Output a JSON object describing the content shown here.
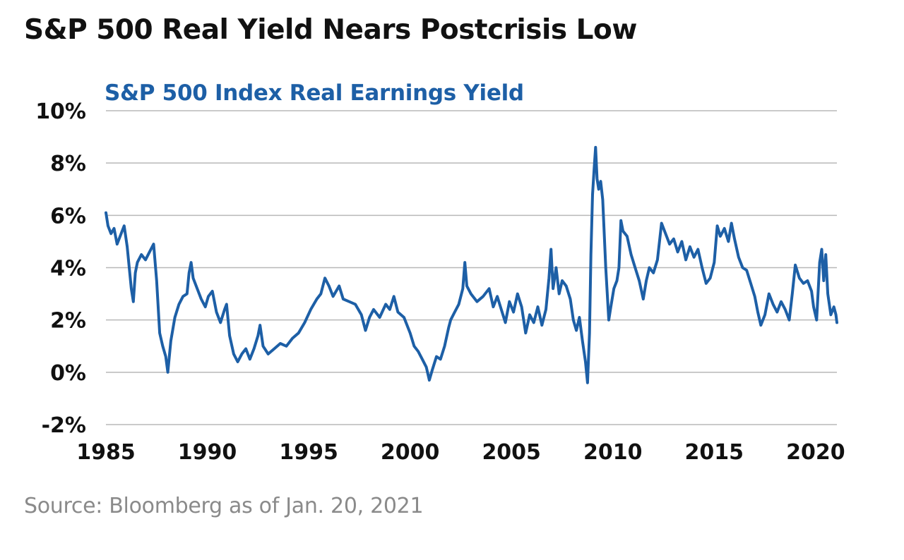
{
  "header": {
    "title": "S&P 500 Real Yield Nears Postcrisis Low"
  },
  "footer": {
    "source": "Source: Bloomberg as of Jan. 20, 2021"
  },
  "colors": {
    "series": "#1d5fa6",
    "grid": "#b8b8b8",
    "text": "#111111",
    "source_text": "#8a8a8a"
  },
  "chart_data": {
    "type": "line",
    "title": "S&P 500 Index Real Earnings Yield",
    "xlabel": "",
    "ylabel": "",
    "xlim": [
      1985,
      2021.05
    ],
    "ylim": [
      -2,
      10
    ],
    "x_ticks": [
      {
        "value": 1985,
        "label": "1985"
      },
      {
        "value": 1990,
        "label": "1990"
      },
      {
        "value": 1995,
        "label": "1995"
      },
      {
        "value": 2000,
        "label": "2000"
      },
      {
        "value": 2005,
        "label": "2005"
      },
      {
        "value": 2010,
        "label": "2010"
      },
      {
        "value": 2015,
        "label": "2015"
      },
      {
        "value": 2020,
        "label": "2020"
      }
    ],
    "y_ticks": [
      {
        "value": 10,
        "label": "10%"
      },
      {
        "value": 8,
        "label": "8%"
      },
      {
        "value": 6,
        "label": "6%"
      },
      {
        "value": 4,
        "label": "4%"
      },
      {
        "value": 2,
        "label": "2%"
      },
      {
        "value": 0,
        "label": "0%"
      },
      {
        "value": -2,
        "label": "-2%"
      }
    ],
    "grid": true,
    "legend": "none",
    "series": [
      {
        "values": [
          [
            1985.0,
            6.1
          ],
          [
            1985.1,
            5.6
          ],
          [
            1985.25,
            5.3
          ],
          [
            1985.4,
            5.5
          ],
          [
            1985.55,
            4.9
          ],
          [
            1985.75,
            5.3
          ],
          [
            1985.9,
            5.6
          ],
          [
            1986.05,
            4.8
          ],
          [
            1986.15,
            4.0
          ],
          [
            1986.25,
            3.2
          ],
          [
            1986.35,
            2.7
          ],
          [
            1986.45,
            3.8
          ],
          [
            1986.55,
            4.2
          ],
          [
            1986.75,
            4.5
          ],
          [
            1986.95,
            4.3
          ],
          [
            1987.15,
            4.6
          ],
          [
            1987.35,
            4.9
          ],
          [
            1987.5,
            3.5
          ],
          [
            1987.65,
            1.5
          ],
          [
            1987.8,
            1.0
          ],
          [
            1987.95,
            0.6
          ],
          [
            1988.05,
            0.0
          ],
          [
            1988.2,
            1.2
          ],
          [
            1988.4,
            2.1
          ],
          [
            1988.6,
            2.6
          ],
          [
            1988.8,
            2.9
          ],
          [
            1989.0,
            3.0
          ],
          [
            1989.1,
            3.8
          ],
          [
            1989.2,
            4.2
          ],
          [
            1989.3,
            3.6
          ],
          [
            1989.5,
            3.2
          ],
          [
            1989.7,
            2.8
          ],
          [
            1989.9,
            2.5
          ],
          [
            1990.05,
            2.9
          ],
          [
            1990.25,
            3.1
          ],
          [
            1990.45,
            2.3
          ],
          [
            1990.65,
            1.9
          ],
          [
            1990.85,
            2.4
          ],
          [
            1990.95,
            2.6
          ],
          [
            1991.1,
            1.4
          ],
          [
            1991.3,
            0.7
          ],
          [
            1991.5,
            0.4
          ],
          [
            1991.7,
            0.7
          ],
          [
            1991.9,
            0.9
          ],
          [
            1992.1,
            0.5
          ],
          [
            1992.3,
            0.9
          ],
          [
            1992.5,
            1.4
          ],
          [
            1992.6,
            1.8
          ],
          [
            1992.75,
            1.0
          ],
          [
            1993.0,
            0.7
          ],
          [
            1993.3,
            0.9
          ],
          [
            1993.6,
            1.1
          ],
          [
            1993.9,
            1.0
          ],
          [
            1994.2,
            1.3
          ],
          [
            1994.5,
            1.5
          ],
          [
            1994.8,
            1.9
          ],
          [
            1995.1,
            2.4
          ],
          [
            1995.4,
            2.8
          ],
          [
            1995.6,
            3.0
          ],
          [
            1995.8,
            3.6
          ],
          [
            1996.0,
            3.3
          ],
          [
            1996.2,
            2.9
          ],
          [
            1996.5,
            3.3
          ],
          [
            1996.7,
            2.8
          ],
          [
            1997.0,
            2.7
          ],
          [
            1997.3,
            2.6
          ],
          [
            1997.6,
            2.2
          ],
          [
            1997.8,
            1.6
          ],
          [
            1998.0,
            2.1
          ],
          [
            1998.2,
            2.4
          ],
          [
            1998.5,
            2.1
          ],
          [
            1998.8,
            2.6
          ],
          [
            1999.0,
            2.4
          ],
          [
            1999.2,
            2.9
          ],
          [
            1999.4,
            2.3
          ],
          [
            1999.7,
            2.1
          ],
          [
            2000.0,
            1.5
          ],
          [
            2000.2,
            1.0
          ],
          [
            2000.4,
            0.8
          ],
          [
            2000.6,
            0.5
          ],
          [
            2000.8,
            0.2
          ],
          [
            2000.95,
            -0.3
          ],
          [
            2001.1,
            0.1
          ],
          [
            2001.3,
            0.6
          ],
          [
            2001.5,
            0.5
          ],
          [
            2001.7,
            1.0
          ],
          [
            2001.9,
            1.7
          ],
          [
            2002.0,
            2.0
          ],
          [
            2002.2,
            2.3
          ],
          [
            2002.4,
            2.6
          ],
          [
            2002.6,
            3.2
          ],
          [
            2002.7,
            4.2
          ],
          [
            2002.8,
            3.3
          ],
          [
            2003.0,
            3.0
          ],
          [
            2003.3,
            2.7
          ],
          [
            2003.6,
            2.9
          ],
          [
            2003.9,
            3.2
          ],
          [
            2004.1,
            2.5
          ],
          [
            2004.3,
            2.9
          ],
          [
            2004.5,
            2.4
          ],
          [
            2004.7,
            1.9
          ],
          [
            2004.9,
            2.7
          ],
          [
            2005.1,
            2.3
          ],
          [
            2005.3,
            3.0
          ],
          [
            2005.5,
            2.5
          ],
          [
            2005.7,
            1.5
          ],
          [
            2005.9,
            2.2
          ],
          [
            2006.1,
            1.9
          ],
          [
            2006.3,
            2.5
          ],
          [
            2006.5,
            1.8
          ],
          [
            2006.7,
            2.4
          ],
          [
            2006.85,
            3.6
          ],
          [
            2006.95,
            4.7
          ],
          [
            2007.05,
            3.2
          ],
          [
            2007.2,
            4.0
          ],
          [
            2007.35,
            3.0
          ],
          [
            2007.5,
            3.5
          ],
          [
            2007.7,
            3.3
          ],
          [
            2007.9,
            2.8
          ],
          [
            2008.05,
            2.0
          ],
          [
            2008.2,
            1.6
          ],
          [
            2008.35,
            2.1
          ],
          [
            2008.5,
            1.2
          ],
          [
            2008.65,
            0.4
          ],
          [
            2008.75,
            -0.4
          ],
          [
            2008.85,
            1.5
          ],
          [
            2008.92,
            4.5
          ],
          [
            2009.0,
            6.8
          ],
          [
            2009.08,
            7.8
          ],
          [
            2009.15,
            8.6
          ],
          [
            2009.22,
            7.4
          ],
          [
            2009.3,
            7.0
          ],
          [
            2009.4,
            7.3
          ],
          [
            2009.5,
            6.6
          ],
          [
            2009.65,
            4.0
          ],
          [
            2009.8,
            2.0
          ],
          [
            2009.9,
            2.5
          ],
          [
            2010.05,
            3.2
          ],
          [
            2010.2,
            3.5
          ],
          [
            2010.3,
            4.0
          ],
          [
            2010.4,
            5.8
          ],
          [
            2010.5,
            5.4
          ],
          [
            2010.7,
            5.2
          ],
          [
            2010.9,
            4.5
          ],
          [
            2011.1,
            4.0
          ],
          [
            2011.3,
            3.5
          ],
          [
            2011.5,
            2.8
          ],
          [
            2011.65,
            3.5
          ],
          [
            2011.8,
            4.0
          ],
          [
            2012.0,
            3.8
          ],
          [
            2012.2,
            4.3
          ],
          [
            2012.4,
            5.7
          ],
          [
            2012.6,
            5.3
          ],
          [
            2012.8,
            4.9
          ],
          [
            2013.0,
            5.1
          ],
          [
            2013.2,
            4.6
          ],
          [
            2013.4,
            5.0
          ],
          [
            2013.6,
            4.3
          ],
          [
            2013.8,
            4.8
          ],
          [
            2014.0,
            4.4
          ],
          [
            2014.2,
            4.7
          ],
          [
            2014.4,
            4.0
          ],
          [
            2014.6,
            3.4
          ],
          [
            2014.8,
            3.6
          ],
          [
            2015.0,
            4.2
          ],
          [
            2015.15,
            5.6
          ],
          [
            2015.3,
            5.2
          ],
          [
            2015.5,
            5.5
          ],
          [
            2015.7,
            5.0
          ],
          [
            2015.85,
            5.7
          ],
          [
            2016.0,
            5.1
          ],
          [
            2016.2,
            4.4
          ],
          [
            2016.4,
            4.0
          ],
          [
            2016.6,
            3.9
          ],
          [
            2016.8,
            3.4
          ],
          [
            2017.0,
            2.9
          ],
          [
            2017.15,
            2.3
          ],
          [
            2017.3,
            1.8
          ],
          [
            2017.5,
            2.2
          ],
          [
            2017.7,
            3.0
          ],
          [
            2017.9,
            2.6
          ],
          [
            2018.1,
            2.3
          ],
          [
            2018.3,
            2.7
          ],
          [
            2018.5,
            2.4
          ],
          [
            2018.7,
            2.0
          ],
          [
            2018.85,
            3.0
          ],
          [
            2019.0,
            4.1
          ],
          [
            2019.2,
            3.6
          ],
          [
            2019.4,
            3.4
          ],
          [
            2019.6,
            3.5
          ],
          [
            2019.8,
            3.1
          ],
          [
            2019.9,
            2.5
          ],
          [
            2020.05,
            2.0
          ],
          [
            2020.2,
            4.2
          ],
          [
            2020.3,
            4.7
          ],
          [
            2020.4,
            3.5
          ],
          [
            2020.5,
            4.5
          ],
          [
            2020.6,
            3.0
          ],
          [
            2020.75,
            2.2
          ],
          [
            2020.9,
            2.5
          ],
          [
            2021.0,
            2.2
          ],
          [
            2021.05,
            1.9
          ]
        ]
      }
    ]
  }
}
